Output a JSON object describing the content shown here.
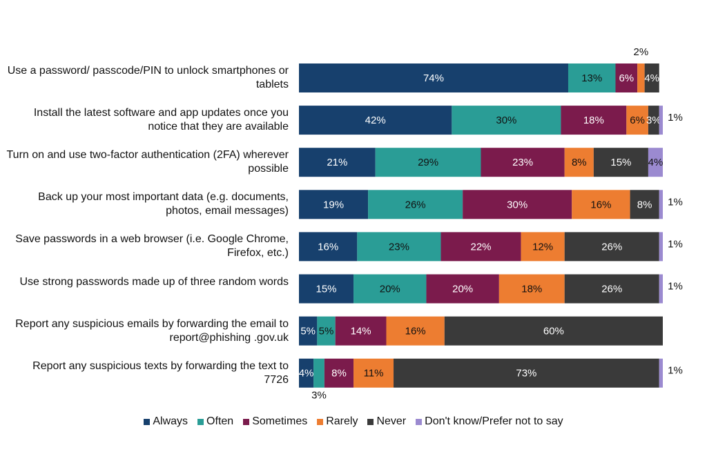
{
  "chart_data": {
    "type": "stacked-bar-horizontal",
    "categories": [
      "Use a password/ passcode/PIN to unlock smartphones or tablets",
      "Install the latest software and app updates once you notice that they are available",
      "Turn on and use two-factor authentication (2FA) wherever possible",
      "Back up your most important data (e.g. documents, photos, email messages)",
      "Save passwords in a web browser (i.e. Google  Chrome, Firefox, etc.)",
      "Use strong passwords made up of three random words",
      "Report any suspicious emails by forwarding the email to report@phishing .gov.uk",
      "Report any suspicious texts by forwarding the text to 7726"
    ],
    "xlim": [
      0,
      100
    ],
    "series": [
      {
        "name": "Always",
        "color": "#17406d",
        "values": [
          74,
          42,
          21,
          19,
          16,
          15,
          5,
          4
        ],
        "value_labels": [
          "74%",
          "42%",
          "21%",
          "19%",
          "16%",
          "15%",
          "5%",
          "4%"
        ]
      },
      {
        "name": "Often",
        "color": "#2a9d96",
        "values": [
          13,
          30,
          29,
          26,
          23,
          20,
          5,
          3
        ],
        "value_labels": [
          "13%",
          "30%",
          "29%",
          "26%",
          "23%",
          "20%",
          "5%",
          "3%"
        ]
      },
      {
        "name": "Sometimes",
        "color": "#7b1b4c",
        "values": [
          6,
          18,
          23,
          30,
          22,
          20,
          14,
          8
        ],
        "value_labels": [
          "6%",
          "18%",
          "23%",
          "30%",
          "22%",
          "20%",
          "14%",
          "8%"
        ]
      },
      {
        "name": "Rarely",
        "color": "#ed7d31",
        "values": [
          2,
          6,
          8,
          16,
          12,
          18,
          16,
          11
        ],
        "value_labels": [
          "2%",
          "6%",
          "8%",
          "16%",
          "12%",
          "18%",
          "16%",
          "11%"
        ]
      },
      {
        "name": "Never",
        "color": "#3a3a3a",
        "values": [
          4,
          3,
          15,
          8,
          26,
          26,
          60,
          73
        ],
        "value_labels": [
          "4%",
          "3%",
          "15%",
          "8%",
          "26%",
          "26%",
          "60%",
          "73%"
        ]
      },
      {
        "name": "Don't know/Prefer not to say",
        "color": "#9b8ad0",
        "values": [
          null,
          1,
          4,
          1,
          1,
          1,
          null,
          1
        ],
        "value_labels": [
          null,
          "1%",
          "4%",
          "1%",
          "1%",
          "1%",
          null,
          "1%"
        ]
      }
    ]
  }
}
